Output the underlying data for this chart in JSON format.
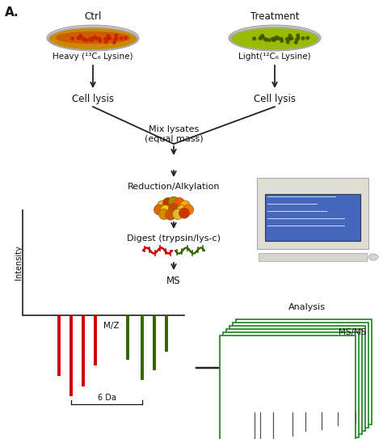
{
  "title_label": "A.",
  "ctrl_label": "Ctrl",
  "treatment_label": "Treatment",
  "heavy_label": "Heavy (¹³C₆ Lysine)",
  "light_label": "Light(¹²C₆ Lysine)",
  "cell_lysis_label": "Cell lysis",
  "mix_label": "Mix lysates\n(equal mass)",
  "reduction_label": "Reduction/Alkylation",
  "digest_label": "Digest (trypsin/lys-c)",
  "ms_label": "MS",
  "msms_label": "MS/MS",
  "analysis_label": "Analysis",
  "intensity_label": "Intensity",
  "mz_label": "M/Z",
  "da_label": "6 Da",
  "bg_color": "#ffffff",
  "arrow_color": "#222222",
  "text_color": "#111111",
  "red_bar_color": "#cc0000",
  "green_bar_color": "#336600",
  "dish_left_fill": "#d4a020",
  "dish_left_fill2": "#cc2200",
  "dish_left_dots": "#cc2200",
  "dish_right_fill": "#88bb00",
  "dish_right_dots": "#445500",
  "dish_rim_color": "#bbbbbb",
  "protein_color1": "#e8b830",
  "protein_color2": "#cc3300",
  "protein_color3": "#aa8800",
  "protein_color4": "#ff5500",
  "peptide_red": "#cc0000",
  "peptide_green": "#336600",
  "ms_box_color": "#2e8b2e",
  "computer_screen_bg": "#3355aa",
  "computer_body": "#ccccbb"
}
